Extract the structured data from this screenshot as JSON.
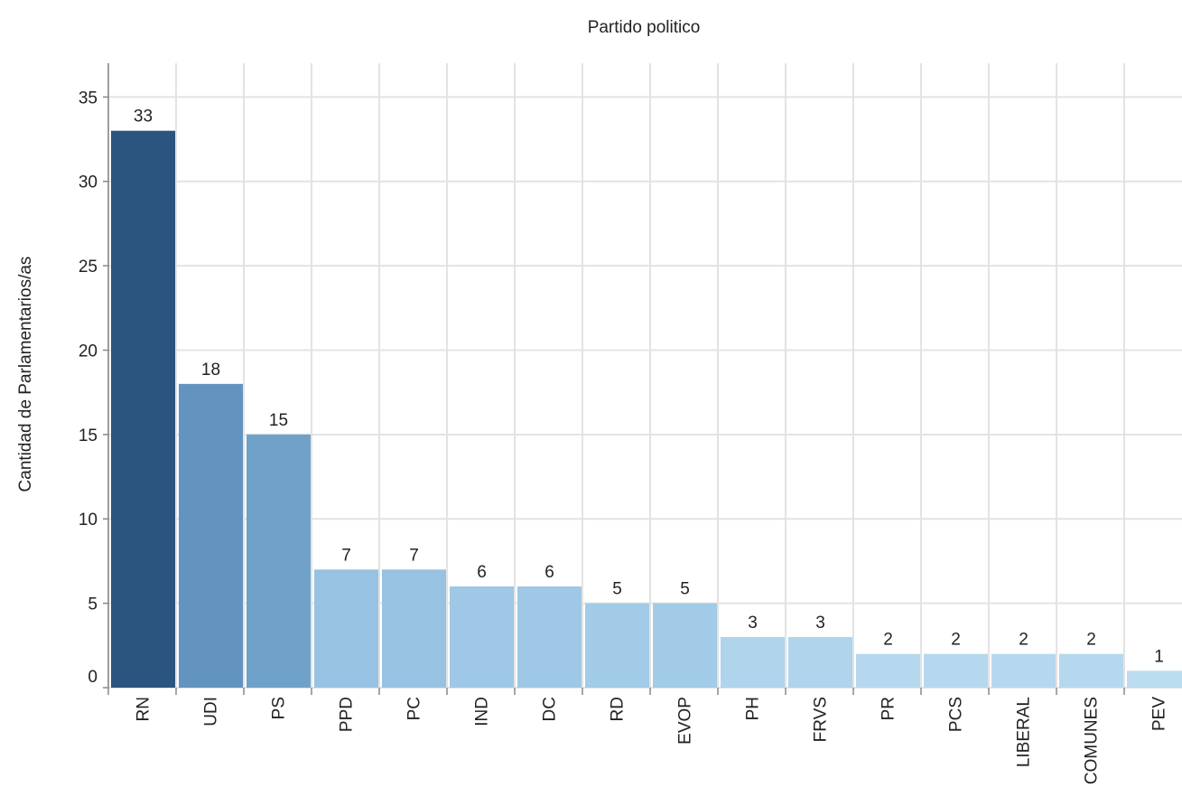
{
  "chart_data": {
    "type": "bar",
    "title": "Partido politico",
    "xlabel": "",
    "ylabel": "Cantidad de Parlamentarios/as",
    "ylim": [
      0,
      37
    ],
    "yticks": [
      0,
      5,
      10,
      15,
      20,
      25,
      30,
      35
    ],
    "grid": true,
    "legend": "none",
    "categories": [
      "RN",
      "UDI",
      "PS",
      "PPD",
      "PC",
      "IND",
      "DC",
      "RD",
      "EVOP",
      "PH",
      "FRVS",
      "PR",
      "PCS",
      "LIBERAL",
      "COMUNES",
      "PEV"
    ],
    "values": [
      33,
      18,
      15,
      7,
      7,
      6,
      6,
      5,
      5,
      3,
      3,
      2,
      2,
      2,
      2,
      1
    ],
    "colors": [
      "#2b557f",
      "#6394c0",
      "#70a2c9",
      "#97c2e2",
      "#97c2e2",
      "#9ec8e5",
      "#9ec8e5",
      "#a2cbe7",
      "#a2cbe7",
      "#afd4ec",
      "#afd4ec",
      "#b6d8ee",
      "#b6d8ee",
      "#b6d8ee",
      "#b6d8ee",
      "#bcdcf0"
    ]
  }
}
